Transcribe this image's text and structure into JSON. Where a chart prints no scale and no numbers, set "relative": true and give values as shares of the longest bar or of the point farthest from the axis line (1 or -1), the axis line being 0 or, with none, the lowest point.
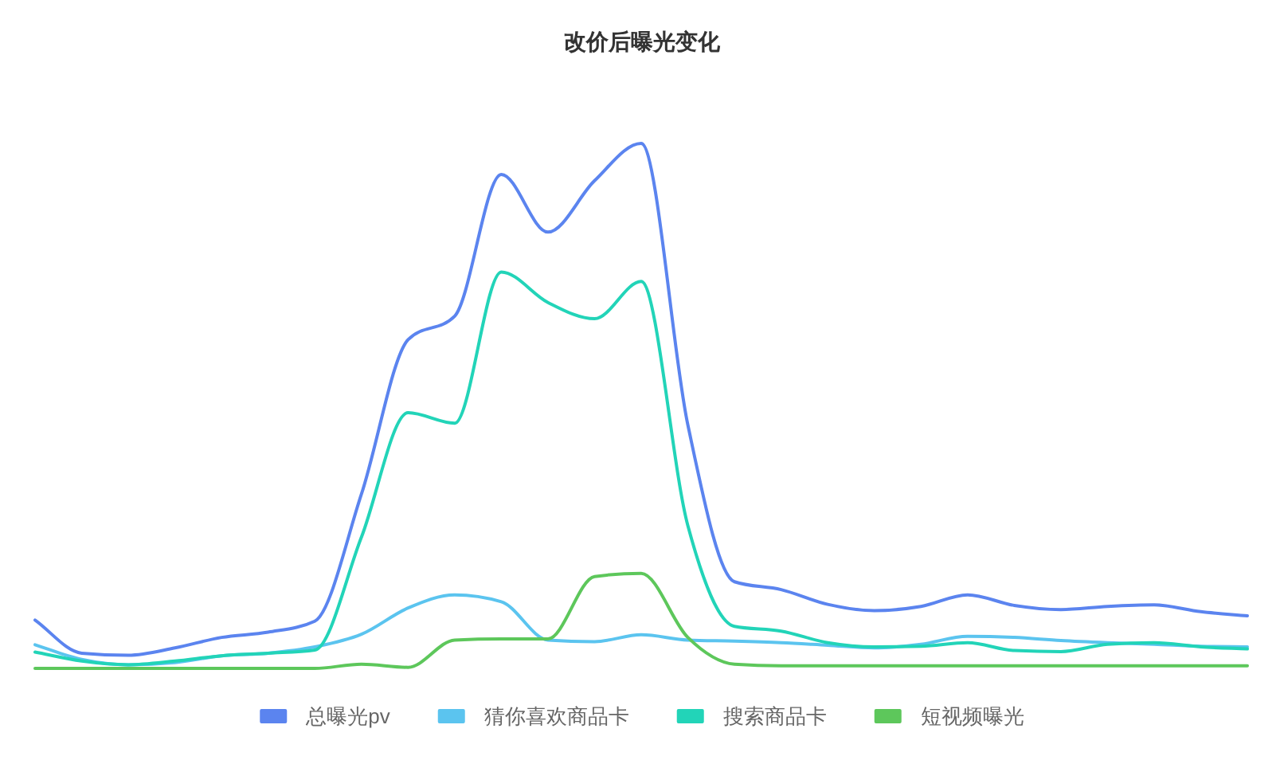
{
  "chart_data": {
    "type": "line",
    "title": "改价后曝光变化",
    "relative": true,
    "categories": [
      null,
      null,
      null,
      null,
      null,
      null,
      null,
      null,
      null,
      null,
      null,
      null,
      null,
      null,
      null,
      null,
      null,
      null,
      null,
      null,
      null,
      null,
      null,
      null,
      null,
      null,
      null
    ],
    "series": [
      {
        "name": "总曝光pv",
        "color": "#5b84ef",
        "values": [
          0.092,
          0.029,
          0.025,
          0.039,
          0.059,
          0.069,
          0.09,
          0.332,
          0.626,
          0.671,
          0.941,
          0.831,
          0.929,
          1,
          0.464,
          0.165,
          0.15,
          0.122,
          0.11,
          0.118,
          0.14,
          0.12,
          0.112,
          0.118,
          0.121,
          0.108,
          0.1
        ]
      },
      {
        "name": "猜你喜欢商品卡",
        "color": "#5bc4ef",
        "values": [
          0.045,
          0.017,
          0.007,
          0.011,
          0.024,
          0.029,
          0.041,
          0.065,
          0.115,
          0.14,
          0.127,
          0.054,
          0.051,
          0.064,
          0.054,
          0.052,
          0.049,
          0.044,
          0.039,
          0.046,
          0.061,
          0.059,
          0.053,
          0.049,
          0.046,
          0.042,
          0.041
        ]
      },
      {
        "name": "搜索商品卡",
        "color": "#22d4b8",
        "values": [
          0.031,
          0.014,
          0.007,
          0.014,
          0.024,
          0.029,
          0.035,
          0.25,
          0.487,
          0.467,
          0.755,
          0.697,
          0.666,
          0.737,
          0.272,
          0.08,
          0.071,
          0.049,
          0.041,
          0.042,
          0.049,
          0.034,
          0.032,
          0.046,
          0.049,
          0.041,
          0.037
        ]
      },
      {
        "name": "短视频曝光",
        "color": "#5dc75b",
        "values": [
          0,
          0,
          0,
          0,
          0,
          0,
          0,
          0.008,
          0.002,
          0.054,
          0.056,
          0.056,
          0.175,
          0.181,
          0.059,
          0.008,
          0.005,
          0.005,
          0.005,
          0.005,
          0.005,
          0.005,
          0.005,
          0.005,
          0.005,
          0.005,
          0.005
        ]
      }
    ],
    "legend": "bottom"
  }
}
